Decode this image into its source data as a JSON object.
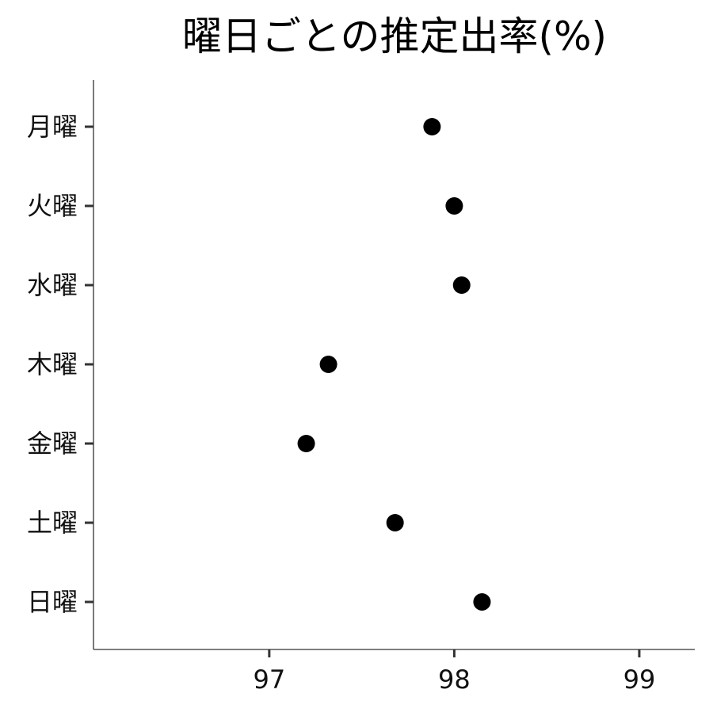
{
  "chart_data": {
    "type": "scatter",
    "title": "曜日ごとの推定出率(%)",
    "xlabel": "",
    "ylabel": "",
    "xlim": [
      96.05,
      99.3
    ],
    "x_ticks": [
      97,
      98,
      99
    ],
    "x_tick_labels": [
      "97",
      "98",
      "99"
    ],
    "categories": [
      "月曜",
      "火曜",
      "水曜",
      "木曜",
      "金曜",
      "土曜",
      "日曜"
    ],
    "values": [
      97.88,
      98.0,
      98.04,
      97.32,
      97.2,
      97.68,
      98.15
    ],
    "grid": false,
    "legend": "none",
    "point_color": "#000000"
  }
}
